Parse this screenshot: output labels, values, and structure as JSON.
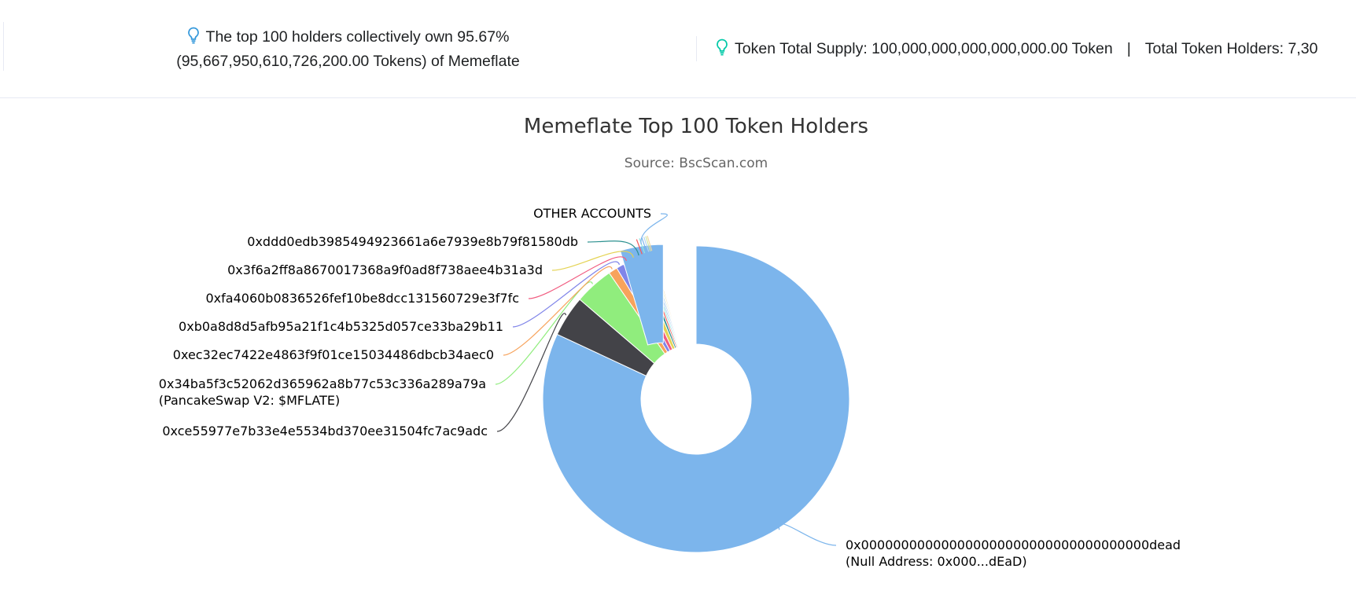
{
  "header": {
    "holders_note_line1": "The top 100 holders collectively own 95.67%",
    "holders_note_line2": "(95,667,950,610,726,200.00 Tokens) of Memeflate",
    "supply_text": "Token Total Supply: 100,000,000,000,000,000.00 Token",
    "separator": "|",
    "holders_text": "Total Token Holders: 7,30",
    "icon": "lightbulb-icon",
    "icon_color": "#00c9a7",
    "icon_color_blue": "#3498db"
  },
  "chart_data": {
    "type": "pie",
    "title": "Memeflate Top 100 Token Holders",
    "subtitle": "Source: BscScan.com",
    "donut": true,
    "slices": [
      {
        "label": "0x000000000000000000000000000000000000dead",
        "label2": "(Null Address: 0x000...dEaD)",
        "value": 79.5,
        "color": "#7cb5ec",
        "connector": "#7cb5ec"
      },
      {
        "label": "0xce55977e7b33e4e5534bd370ee31504fc7ac9adc",
        "label2": "",
        "value": 4.2,
        "color": "#434348",
        "connector": "#434348"
      },
      {
        "label": "0x34ba5f3c52062d365962a8b77c53c336a289a79a",
        "label2": "(PancakeSwap V2: $MFLATE)",
        "value": 4.0,
        "color": "#90ed7d",
        "connector": "#90ed7d"
      },
      {
        "label": "0xec32ec7422e4863f9f01ce15034486dbcb34aec0",
        "label2": "",
        "value": 0.9,
        "color": "#f7a35c",
        "connector": "#f7a35c"
      },
      {
        "label": "0xb0a8d8d5afb95a21f1c4b5325d057ce33ba29b11",
        "label2": "",
        "value": 0.8,
        "color": "#8085e9",
        "connector": "#8085e9"
      },
      {
        "label": "0xfa4060b0836526fef10be8dcc131560729e3f7fc",
        "label2": "",
        "value": 0.8,
        "color": "#f15c80",
        "connector": "#f15c80"
      },
      {
        "label": "0x3f6a2ff8a8670017368a9f0ad8f738aee4b31a3d",
        "label2": "",
        "value": 0.75,
        "color": "#e4d354",
        "connector": "#e4d354"
      },
      {
        "label": "0xddd0edb3985494923661a6e7939e8b79f81580db",
        "label2": "",
        "value": 0.4,
        "color": "#2b908f",
        "connector": "#2b908f"
      },
      {
        "label": "",
        "label2": "",
        "value": 0.3,
        "color": "#f45b5b",
        "connector": "#f45b5b"
      },
      {
        "label": "",
        "label2": "",
        "value": 0.25,
        "color": "#91e8e1",
        "connector": "#91e8e1"
      },
      {
        "label": "",
        "label2": "",
        "value": 0.2,
        "color": "#7cb5ec",
        "connector": "#7cb5ec"
      },
      {
        "label": "",
        "label2": "",
        "value": 0.2,
        "color": "#b5d3f0",
        "connector": "#b5d3f0"
      },
      {
        "label": "",
        "label2": "",
        "value": 0.15,
        "color": "#cfe7a8",
        "connector": "#cfe7a8"
      },
      {
        "label": "",
        "label2": "",
        "value": 0.15,
        "color": "#f2d7a3",
        "connector": "#f2d7a3"
      },
      {
        "label": "OTHER ACCOUNTS",
        "label2": "",
        "value": 4.4,
        "color": "#7cb5ec",
        "connector": "#7cb5ec",
        "sliced": true
      }
    ]
  }
}
